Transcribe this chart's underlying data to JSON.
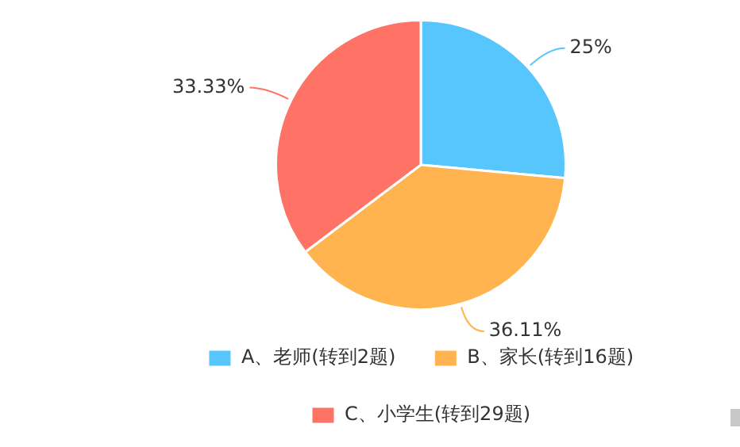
{
  "chart_data": {
    "type": "pie",
    "categories": [
      "A、老师(转到2题)",
      "B、家长(转到16题)",
      "C、小学生(转到29题)"
    ],
    "values": [
      25,
      36.11,
      33.33
    ],
    "value_labels": [
      "25%",
      "36.11%",
      "33.33%"
    ],
    "colors": [
      "#57c6fd",
      "#ffb44f",
      "#ff7366"
    ],
    "legend": "bottom"
  }
}
